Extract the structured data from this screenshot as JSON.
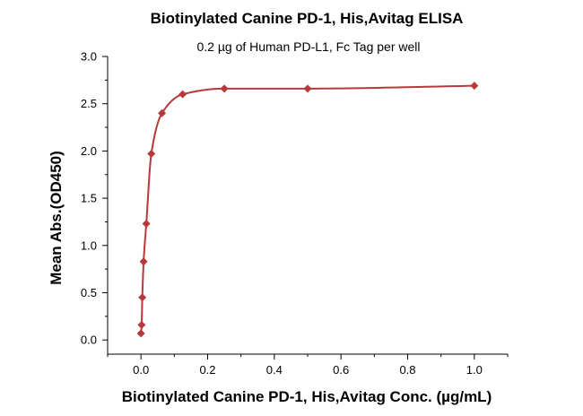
{
  "chart_data": {
    "type": "scatter",
    "title": "Biotinylated Canine PD-1, His,Avitag ELISA",
    "subtitle": "0.2 µg of Human PD-L1, Fc Tag per well",
    "xlabel": "Biotinylated Canine PD-1, His,Avitag Conc. (µg/mL)",
    "ylabel": "Mean Abs.(OD450)",
    "xlim": [
      -0.1,
      1.1
    ],
    "ylim": [
      -0.15,
      3.0
    ],
    "xticks": [
      "0.0",
      "0.2",
      "0.4",
      "0.6",
      "0.8",
      "1.0"
    ],
    "yticks": [
      "0.0",
      "0.5",
      "1.0",
      "1.5",
      "2.0",
      "2.5",
      "3.0"
    ],
    "grid": false,
    "series": [
      {
        "x": [
          0.0,
          0.002,
          0.004,
          0.008,
          0.016,
          0.031,
          0.063,
          0.125,
          0.25,
          0.5,
          1.0
        ],
        "y": [
          0.07,
          0.16,
          0.45,
          0.83,
          1.23,
          1.97,
          2.4,
          2.6,
          2.66,
          2.66,
          2.69
        ],
        "color": "#b8383b",
        "marker": "diamond",
        "fit_curve": true
      }
    ]
  }
}
